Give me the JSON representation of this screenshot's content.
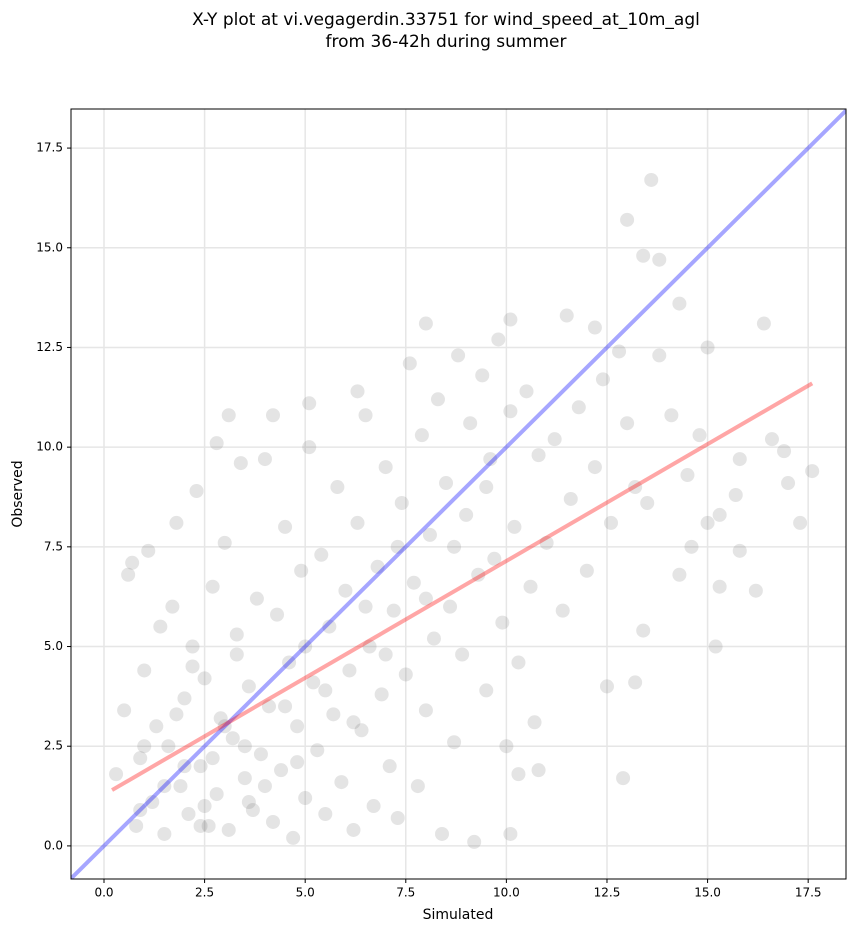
{
  "chart_data": {
    "type": "scatter",
    "title": [
      "X-Y plot at vi.vegagerdin.33751 for wind_speed_at_10m_agl",
      "from 36-42h during summer"
    ],
    "x_label": "Simulated",
    "y_label": "Observed",
    "xlim": [
      -0.82,
      18.44
    ],
    "ylim": [
      -0.83,
      18.48
    ],
    "xticks": [
      {
        "value": 0,
        "label": "0.0"
      },
      2.5,
      {
        "value": 5,
        "label": "5.0"
      },
      7.5,
      {
        "value": 10,
        "label": "10.0"
      },
      12.5,
      {
        "value": 15,
        "label": "15.0"
      },
      17.5
    ],
    "yticks": [
      {
        "value": 0,
        "label": "0.0"
      },
      2.5,
      {
        "value": 5,
        "label": "5.0"
      },
      7.5,
      {
        "value": 10,
        "label": "10.0"
      },
      12.5,
      {
        "value": 15,
        "label": "15.0"
      },
      17.5
    ],
    "grid": true,
    "color": "rgba(90,90,90,0.16)",
    "x": [
      0.3,
      0.5,
      0.6,
      0.7,
      0.8,
      0.9,
      1.0,
      1.1,
      1.2,
      1.3,
      1.4,
      1.5,
      1.6,
      1.7,
      1.8,
      1.9,
      2.0,
      2.1,
      2.2,
      2.3,
      2.4,
      2.5,
      2.6,
      2.7,
      2.8,
      2.9,
      3.0,
      3.1,
      3.2,
      3.3,
      3.4,
      3.5,
      3.6,
      3.7,
      3.8,
      3.9,
      4.0,
      4.1,
      4.2,
      4.3,
      4.4,
      4.5,
      4.6,
      4.7,
      4.8,
      4.9,
      5.0,
      5.1,
      5.2,
      5.3,
      5.4,
      5.5,
      5.6,
      5.7,
      5.8,
      5.9,
      6.0,
      6.1,
      6.2,
      6.3,
      6.4,
      6.5,
      6.6,
      6.7,
      6.8,
      6.9,
      7.0,
      7.1,
      7.2,
      7.3,
      7.4,
      7.5,
      7.6,
      7.7,
      7.8,
      7.9,
      8.0,
      8.1,
      8.2,
      8.3,
      8.4,
      8.5,
      8.6,
      8.7,
      8.8,
      8.9,
      9.0,
      9.1,
      9.2,
      9.3,
      9.4,
      9.5,
      9.6,
      9.7,
      9.8,
      9.9,
      10.0,
      10.1,
      10.2,
      10.3,
      10.5,
      10.6,
      10.8,
      11.0,
      11.2,
      11.4,
      11.6,
      11.8,
      12.0,
      12.2,
      12.4,
      12.6,
      12.8,
      13.0,
      13.2,
      13.5,
      13.8,
      14.1,
      14.5,
      14.8,
      15.0,
      15.3,
      15.7,
      15.8,
      13.6,
      13.0,
      13.4,
      13.8,
      14.3,
      16.4,
      11.5,
      8.0,
      10.1,
      12.2,
      17.6,
      17.3,
      15.2,
      13.2,
      12.9,
      12.5,
      10.1,
      3.1,
      4.2,
      2.8,
      5.1,
      6.3,
      16.6,
      17.0,
      16.2,
      15.8,
      15.3,
      14.6,
      14.3,
      13.4,
      10.7,
      10.8,
      10.3,
      15.0,
      16.9,
      1.5,
      2.0,
      2.5,
      3.0,
      3.5,
      4.0,
      4.5,
      2.2,
      1.8,
      3.3,
      2.7,
      4.8,
      5.5,
      6.2,
      1.0,
      0.9,
      2.4,
      3.6,
      5.0,
      6.5,
      7.0,
      8.0,
      8.7,
      9.5,
      7.3
    ],
    "y": [
      1.8,
      3.4,
      6.8,
      7.1,
      0.5,
      2.2,
      4.4,
      7.4,
      1.1,
      3.0,
      5.5,
      0.3,
      2.5,
      6.0,
      8.1,
      1.5,
      3.7,
      0.8,
      5.0,
      8.9,
      2.0,
      4.2,
      0.5,
      6.5,
      1.3,
      3.2,
      7.6,
      0.4,
      2.7,
      5.3,
      9.6,
      1.7,
      4.0,
      0.9,
      6.2,
      2.3,
      9.7,
      3.5,
      0.6,
      5.8,
      1.9,
      8.0,
      4.6,
      0.2,
      3.0,
      6.9,
      1.2,
      10.0,
      4.1,
      2.4,
      7.3,
      0.8,
      5.5,
      3.3,
      9.0,
      1.6,
      6.4,
      4.4,
      0.4,
      8.1,
      2.9,
      10.8,
      5.0,
      1.0,
      7.0,
      3.8,
      9.5,
      2.0,
      5.9,
      0.7,
      8.6,
      4.3,
      12.1,
      6.6,
      1.5,
      10.3,
      3.4,
      7.8,
      5.2,
      11.2,
      0.3,
      9.1,
      6.0,
      2.6,
      12.3,
      4.8,
      8.3,
      10.6,
      0.1,
      6.8,
      11.8,
      3.9,
      9.7,
      7.2,
      12.7,
      5.6,
      2.5,
      10.9,
      8.0,
      4.6,
      11.4,
      6.5,
      9.8,
      7.6,
      10.2,
      5.9,
      8.7,
      11.0,
      6.9,
      9.5,
      11.7,
      8.1,
      12.4,
      10.6,
      9.0,
      8.6,
      12.3,
      10.8,
      9.3,
      10.3,
      12.5,
      8.3,
      8.8,
      9.7,
      16.7,
      15.7,
      14.8,
      14.7,
      13.6,
      13.1,
      13.3,
      13.1,
      13.2,
      13.0,
      9.4,
      8.1,
      5.0,
      4.1,
      1.7,
      4.0,
      0.3,
      10.8,
      10.8,
      10.1,
      11.1,
      11.4,
      10.2,
      9.1,
      6.4,
      7.4,
      6.5,
      7.5,
      6.8,
      5.4,
      3.1,
      1.9,
      1.8,
      8.1,
      9.9,
      1.5,
      2.0,
      1.0,
      3.0,
      2.5,
      1.5,
      3.5,
      4.5,
      3.3,
      4.8,
      2.2,
      2.1,
      3.9,
      3.1,
      2.5,
      0.9,
      0.5,
      1.1,
      5.0,
      6.0,
      4.8,
      6.2,
      7.5,
      9.0,
      7.5
    ],
    "lines": [
      {
        "color": "rgba(0,0,255,0.35)",
        "x": [
          -0.82,
          18.44
        ],
        "y": [
          -0.82,
          18.44
        ]
      },
      {
        "color": "rgba(255,0,0,0.35)",
        "x": [
          0.2,
          17.6
        ],
        "y": [
          1.4,
          11.6
        ]
      }
    ]
  }
}
